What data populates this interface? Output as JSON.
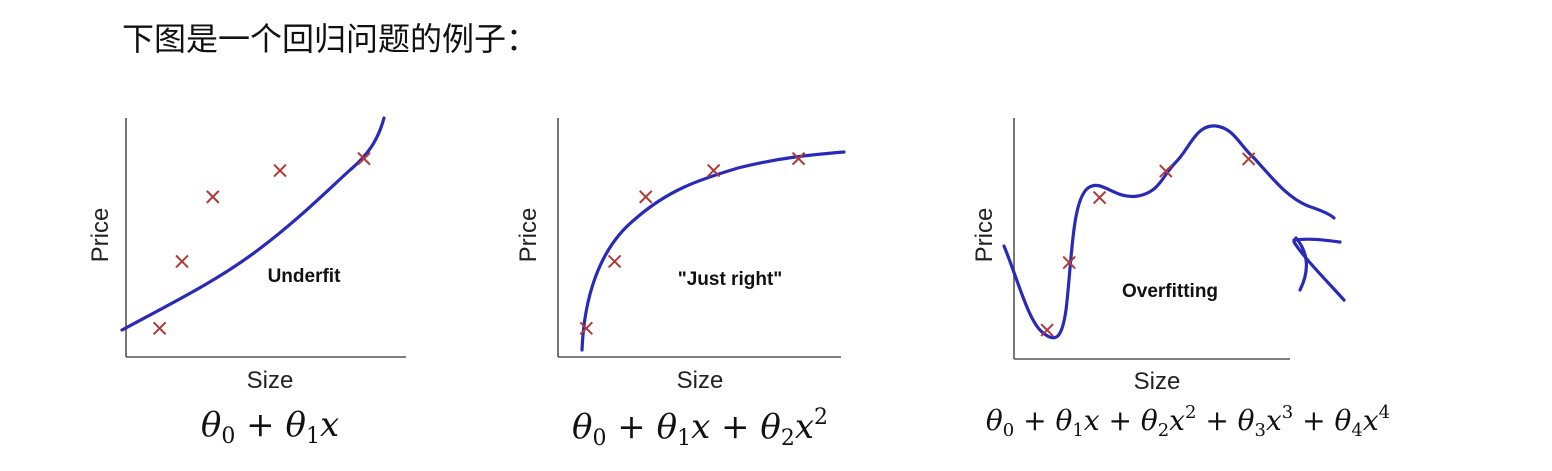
{
  "intro": "下图是一个回归问题的例子：",
  "colors": {
    "curve": "#2a2ab8",
    "point": "#b03a3a",
    "axis": "#555555"
  },
  "chart_data": [
    {
      "type": "scatter",
      "xlabel": "Size",
      "ylabel": "Price",
      "annotation": "Underfit",
      "equation": "θ₀ + θ₁x",
      "fit": "linear",
      "points": [
        [
          0.12,
          0.12
        ],
        [
          0.2,
          0.4
        ],
        [
          0.31,
          0.67
        ],
        [
          0.55,
          0.78
        ],
        [
          0.85,
          0.83
        ]
      ]
    },
    {
      "type": "scatter",
      "xlabel": "Size",
      "ylabel": "Price",
      "annotation": "\"Just right\"",
      "equation": "θ₀ + θ₁x + θ₂x²",
      "fit": "quadratic",
      "points": [
        [
          0.1,
          0.12
        ],
        [
          0.2,
          0.4
        ],
        [
          0.31,
          0.67
        ],
        [
          0.55,
          0.78
        ],
        [
          0.85,
          0.83
        ]
      ]
    },
    {
      "type": "scatter",
      "xlabel": "Size",
      "ylabel": "Price",
      "annotation": "Overfitting",
      "equation": "θ₀ + θ₁x + θ₂x² + θ₃x³ + θ₄x⁴",
      "fit": "quartic",
      "points": [
        [
          0.12,
          0.12
        ],
        [
          0.2,
          0.4
        ],
        [
          0.31,
          0.67
        ],
        [
          0.55,
          0.78
        ],
        [
          0.85,
          0.83
        ]
      ]
    }
  ]
}
